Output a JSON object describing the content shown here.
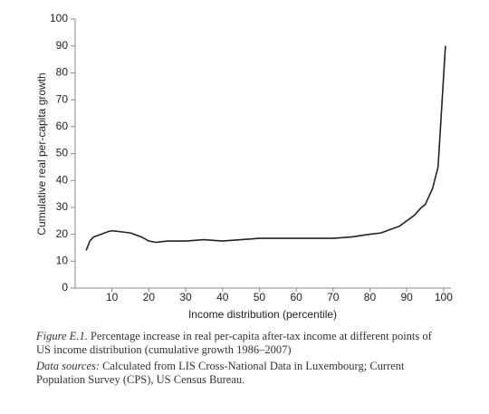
{
  "chart_data": {
    "type": "line",
    "x_label": "Income distribution (percentile)",
    "y_label": "Cumulative real per-capita growth",
    "x": [
      3,
      4,
      5,
      7,
      9,
      10,
      12,
      15,
      18,
      20,
      22,
      25,
      28,
      30,
      35,
      40,
      45,
      50,
      55,
      60,
      65,
      70,
      75,
      80,
      83,
      86,
      88,
      90,
      92,
      94,
      95,
      97,
      98.5,
      100.5
    ],
    "values": [
      14,
      17.5,
      19,
      20,
      21,
      21.3,
      21,
      20.5,
      19,
      17.5,
      17,
      17.5,
      17.5,
      17.5,
      18,
      17.5,
      18,
      18.5,
      18.5,
      18.5,
      18.5,
      18.5,
      19,
      20,
      20.5,
      22,
      23,
      25,
      27,
      30,
      31,
      37,
      45,
      90
    ],
    "color": "#222222",
    "xlim": [
      0,
      102
    ],
    "ylim": [
      0,
      100
    ],
    "xticks": [
      10,
      20,
      30,
      40,
      50,
      60,
      70,
      80,
      90,
      100
    ],
    "yticks": [
      0,
      10,
      20,
      30,
      40,
      50,
      60,
      70,
      80,
      90,
      100
    ],
    "caption_label": "Figure E.1.",
    "caption_text": "Percentage increase in real per-capita after-tax income at different points of US income distribution (cumulative growth 1986–2007)",
    "sources_label": "Data sources:",
    "sources_text": "Calculated from LIS Cross-National Data in Luxembourg; Current Population Survey (CPS), US Census Bureau."
  }
}
